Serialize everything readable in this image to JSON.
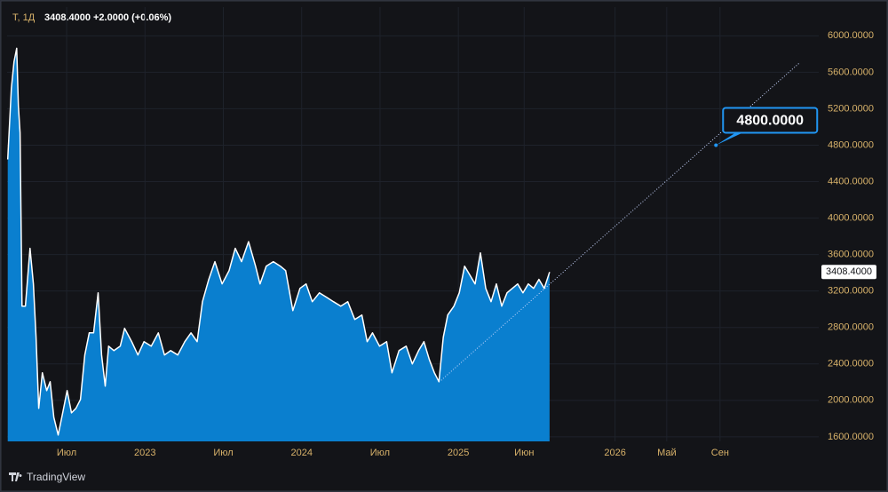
{
  "header": {
    "symbol": "T, 1Д",
    "price": "3408.4000",
    "change": "+2.0000 (+0.06%)"
  },
  "brand": "TradingView",
  "chart_data": {
    "type": "area",
    "color": "#0a7fcf",
    "line_color": "#ffffff",
    "grid": true,
    "x": [
      2022.124,
      2022.147,
      2022.164,
      2022.181,
      2022.192,
      2022.203,
      2022.215,
      2022.237,
      2022.266,
      2022.288,
      2022.305,
      2022.322,
      2022.345,
      2022.373,
      2022.395,
      2022.418,
      2022.446,
      2022.475,
      2022.503,
      2022.531,
      2022.559,
      2022.588,
      2022.616,
      2022.644,
      2022.672,
      2022.701,
      2022.723,
      2022.746,
      2022.768,
      2022.802,
      2022.842,
      2022.87,
      2022.915,
      2022.955,
      2022.994,
      2023.04,
      2023.085,
      2023.124,
      2023.164,
      2023.209,
      2023.254,
      2023.294,
      2023.333,
      2023.367,
      2023.407,
      2023.446,
      2023.492,
      2023.537,
      2023.576,
      2023.616,
      2023.661,
      2023.706,
      2023.734,
      2023.774,
      2023.819,
      2023.864,
      2023.898,
      2023.944,
      2023.989,
      2024.028,
      2024.068,
      2024.113,
      2024.158,
      2024.203,
      2024.249,
      2024.294,
      2024.339,
      2024.384,
      2024.418,
      2024.452,
      2024.497,
      2024.542,
      2024.576,
      2024.621,
      2024.667,
      2024.706,
      2024.746,
      2024.78,
      2024.814,
      2024.847,
      2024.876,
      2024.904,
      2024.932,
      2024.972,
      2025.006,
      2025.04,
      2025.073,
      2025.107,
      2025.141,
      2025.175,
      2025.209,
      2025.243,
      2025.277,
      2025.311,
      2025.345,
      2025.379,
      2025.412,
      2025.446,
      2025.48,
      2025.514,
      2025.548,
      2025.582
    ],
    "values": [
      4644,
      5424,
      5717,
      5863,
      5229,
      4937,
      3034,
      3034,
      3668,
      3278,
      2693,
      1912,
      2302,
      2107,
      2205,
      1815,
      1620,
      1863,
      2107,
      1863,
      1912,
      2010,
      2498,
      2741,
      2741,
      3180,
      2498,
      2156,
      2595,
      2546,
      2595,
      2790,
      2644,
      2498,
      2644,
      2595,
      2741,
      2498,
      2546,
      2498,
      2644,
      2741,
      2644,
      3083,
      3327,
      3522,
      3278,
      3424,
      3668,
      3522,
      3741,
      3473,
      3278,
      3473,
      3522,
      3473,
      3424,
      2985,
      3229,
      3278,
      3083,
      3180,
      3132,
      3083,
      3034,
      3083,
      2888,
      2937,
      2644,
      2741,
      2595,
      2644,
      2302,
      2546,
      2595,
      2400,
      2546,
      2644,
      2449,
      2302,
      2205,
      2693,
      2937,
      3034,
      3180,
      3473,
      3376,
      3278,
      3619,
      3229,
      3083,
      3278,
      3034,
      3180,
      3229,
      3278,
      3180,
      3278,
      3229,
      3327,
      3229,
      3408.4
    ],
    "last_price": {
      "value": 3408.4,
      "label": "3408.4000"
    },
    "trend_line": {
      "x": [
        2024.89,
        2027.18
      ],
      "y": [
        2220,
        5707
      ]
    },
    "annotation": {
      "text": "4800.0000",
      "x": 2026.644,
      "y": 4800
    },
    "xlim": [
      2022.12,
      2027.3
    ],
    "xticks": [
      {
        "value": 2022.5,
        "label": "Июл"
      },
      2023,
      {
        "value": 2023.5,
        "label": "Июл"
      },
      2024,
      {
        "value": 2024.5,
        "label": "Июл"
      },
      2025,
      {
        "value": 2025.42,
        "label": "Июн"
      },
      2026,
      {
        "value": 2026.33,
        "label": "Май"
      },
      {
        "value": 2026.67,
        "label": "Сен"
      }
    ],
    "ylim": [
      1550,
      6120
    ],
    "yticks": [
      {
        "value": 1600,
        "label": "1600.0000"
      },
      {
        "value": 2000,
        "label": "2000.0000"
      },
      {
        "value": 2400,
        "label": "2400.0000"
      },
      {
        "value": 2800,
        "label": "2800.0000"
      },
      {
        "value": 3200,
        "label": "3200.0000"
      },
      {
        "value": 3600,
        "label": "3600.0000"
      },
      {
        "value": 4000,
        "label": "4000.0000"
      },
      {
        "value": 4400,
        "label": "4400.0000"
      },
      {
        "value": 4800,
        "label": "4800.0000"
      },
      {
        "value": 5200,
        "label": "5200.0000"
      },
      {
        "value": 5600,
        "label": "5600.0000"
      },
      {
        "value": 6000,
        "label": "6000.0000"
      }
    ]
  }
}
